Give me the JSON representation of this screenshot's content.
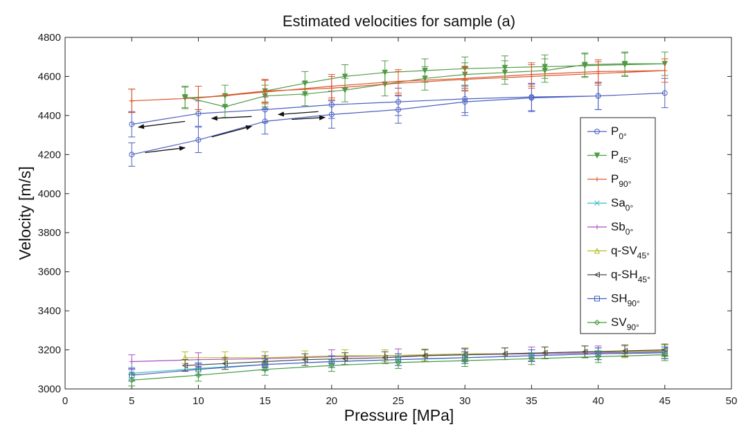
{
  "chart_data": {
    "type": "line",
    "title": "Estimated velocities for sample (a)",
    "xlabel": "Pressure [MPa]",
    "ylabel": "Velocity [m/s]",
    "xlim": [
      0,
      50
    ],
    "ylim": [
      3000,
      4800
    ],
    "xticks": [
      0,
      5,
      10,
      15,
      20,
      25,
      30,
      35,
      40,
      45,
      50
    ],
    "yticks": [
      3000,
      3200,
      3400,
      3600,
      3800,
      4000,
      4200,
      4400,
      4600,
      4800
    ],
    "legend_position": "right",
    "series": [
      {
        "name": "P",
        "sub": "0°",
        "color": "#4a5fc1",
        "marker": "o",
        "x": [
          5,
          10,
          15,
          20,
          25,
          30,
          35,
          40,
          45,
          40,
          35,
          30,
          25,
          20,
          15,
          10,
          5
        ],
        "y": [
          4200,
          4275,
          4370,
          4405,
          4430,
          4470,
          4490,
          4500,
          4515,
          4500,
          4495,
          4485,
          4470,
          4455,
          4430,
          4410,
          4355
        ],
        "err": [
          60,
          65,
          65,
          70,
          70,
          70,
          70,
          70,
          75,
          70,
          70,
          70,
          70,
          70,
          65,
          65,
          65
        ]
      },
      {
        "name": "P",
        "sub": "45°",
        "color": "#4f9a44",
        "marker": "v",
        "x": [
          9,
          12,
          15,
          18,
          21,
          24,
          27,
          30,
          33,
          36,
          39,
          42,
          45,
          42,
          39,
          36,
          33,
          30,
          27,
          24,
          21,
          18,
          15,
          12,
          9
        ],
        "y": [
          4495,
          4445,
          4500,
          4510,
          4530,
          4560,
          4590,
          4610,
          4620,
          4630,
          4660,
          4665,
          4665,
          4660,
          4655,
          4650,
          4645,
          4640,
          4630,
          4620,
          4600,
          4565,
          4525,
          4500,
          4490
        ],
        "err": [
          55,
          55,
          55,
          60,
          60,
          60,
          60,
          60,
          60,
          60,
          60,
          60,
          60,
          60,
          60,
          60,
          60,
          60,
          60,
          60,
          60,
          60,
          55,
          55,
          55
        ]
      },
      {
        "name": "P",
        "sub": "90°",
        "color": "#d9562b",
        "marker": "+",
        "x": [
          5,
          10,
          15,
          20,
          25,
          30,
          35,
          40,
          45,
          40,
          35,
          30,
          25,
          20,
          15,
          10,
          5
        ],
        "y": [
          4475,
          4490,
          4520,
          4550,
          4575,
          4590,
          4610,
          4625,
          4630,
          4615,
          4600,
          4585,
          4565,
          4540,
          4525,
          4490,
          4475
        ],
        "err": [
          60,
          60,
          60,
          60,
          60,
          60,
          60,
          60,
          60,
          60,
          60,
          60,
          60,
          60,
          60,
          60,
          60
        ]
      },
      {
        "name": "Sa",
        "sub": "0°",
        "color": "#3fbcc4",
        "marker": "x",
        "x": [
          5,
          10,
          15,
          20,
          25,
          30,
          35,
          40,
          45
        ],
        "y": [
          3080,
          3105,
          3125,
          3140,
          3150,
          3160,
          3170,
          3180,
          3185
        ],
        "err": [
          30,
          30,
          30,
          30,
          30,
          30,
          30,
          30,
          30
        ]
      },
      {
        "name": "Sb",
        "sub": "0°",
        "color": "#a64fc0",
        "marker": "+",
        "x": [
          5,
          10,
          15,
          20,
          25,
          30,
          35,
          40,
          45
        ],
        "y": [
          3140,
          3150,
          3155,
          3165,
          3170,
          3175,
          3180,
          3185,
          3190
        ],
        "err": [
          35,
          35,
          35,
          35,
          35,
          35,
          35,
          35,
          35
        ]
      },
      {
        "name": "q-SV",
        "sub": "45°",
        "color": "#b8b82a",
        "marker": "^",
        "x": [
          9,
          12,
          15,
          18,
          21,
          24,
          27,
          30,
          33,
          36,
          39,
          42,
          45
        ],
        "y": [
          3160,
          3160,
          3160,
          3165,
          3170,
          3170,
          3175,
          3180,
          3180,
          3185,
          3190,
          3190,
          3195
        ],
        "err": [
          30,
          30,
          30,
          30,
          30,
          30,
          30,
          30,
          30,
          30,
          30,
          30,
          30
        ]
      },
      {
        "name": "q-SH",
        "sub": "45°",
        "color": "#444444",
        "marker": "<",
        "x": [
          9,
          12,
          15,
          18,
          21,
          24,
          27,
          30,
          33,
          36,
          39,
          42,
          45
        ],
        "y": [
          3120,
          3130,
          3140,
          3150,
          3155,
          3160,
          3170,
          3175,
          3180,
          3185,
          3190,
          3195,
          3200
        ],
        "err": [
          30,
          30,
          30,
          30,
          30,
          30,
          30,
          30,
          30,
          30,
          30,
          30,
          30
        ]
      },
      {
        "name": "SH",
        "sub": "90°",
        "color": "#3f5bbd",
        "marker": "s",
        "x": [
          5,
          10,
          15,
          20,
          25,
          30,
          35,
          40,
          45
        ],
        "y": [
          3070,
          3100,
          3125,
          3140,
          3150,
          3160,
          3170,
          3180,
          3185
        ],
        "err": [
          30,
          30,
          30,
          30,
          30,
          30,
          30,
          30,
          30
        ]
      },
      {
        "name": "SV",
        "sub": "90°",
        "color": "#3f9a3a",
        "marker": "d",
        "x": [
          5,
          10,
          15,
          20,
          25,
          30,
          35,
          40,
          45
        ],
        "y": [
          3045,
          3070,
          3100,
          3120,
          3135,
          3145,
          3155,
          3165,
          3175
        ],
        "err": [
          30,
          30,
          30,
          30,
          30,
          30,
          30,
          30,
          30
        ]
      }
    ],
    "annotations": {
      "arrows_up": [
        [
          6,
          4210,
          9,
          4235
        ],
        [
          11,
          4290,
          14,
          4345
        ],
        [
          17,
          4380,
          19.5,
          4390
        ]
      ],
      "arrows_down": [
        [
          9,
          4370,
          5.5,
          4340
        ],
        [
          14,
          4395,
          11,
          4385
        ],
        [
          19,
          4420,
          16,
          4405
        ]
      ]
    }
  }
}
